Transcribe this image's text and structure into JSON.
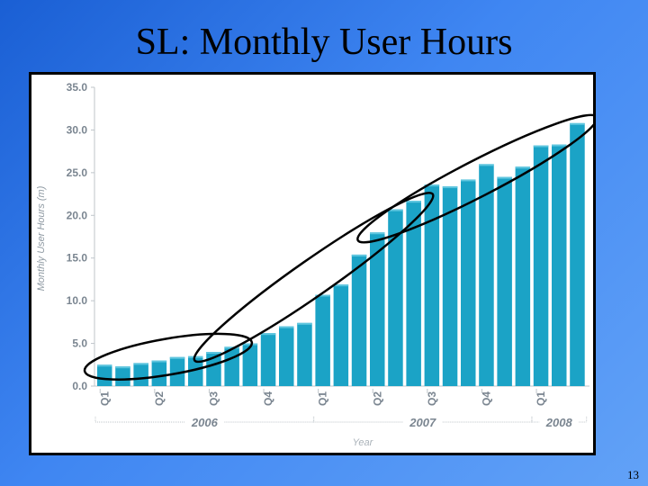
{
  "slide": {
    "title": "SL:  Monthly User Hours",
    "page_number": "13"
  },
  "colors": {
    "bar": "#1ba3c6",
    "bar_top": "#5fc6df",
    "axis": "#bfc5ca",
    "grid": "#e3e6e8",
    "annotation": "#000000"
  },
  "chart_data": {
    "type": "bar",
    "title": "",
    "xlabel": "Year",
    "ylabel": "Monthly User Hours (m)",
    "ylim": [
      0,
      35
    ],
    "yticks": [
      "0.0",
      "5.0",
      "10.0",
      "15.0",
      "20.0",
      "25.0",
      "30.0",
      "35.0"
    ],
    "grid": false,
    "quarter_labels": [
      {
        "label": "Q1",
        "month_index": 0
      },
      {
        "label": "Q2",
        "month_index": 3
      },
      {
        "label": "Q3",
        "month_index": 6
      },
      {
        "label": "Q4",
        "month_index": 9
      },
      {
        "label": "Q1",
        "month_index": 12
      },
      {
        "label": "Q2",
        "month_index": 15
      },
      {
        "label": "Q3",
        "month_index": 18
      },
      {
        "label": "Q4",
        "month_index": 21
      },
      {
        "label": "Q1",
        "month_index": 24
      }
    ],
    "year_labels": [
      {
        "label": "2006",
        "start_month": 0,
        "end_month": 11
      },
      {
        "label": "2007",
        "start_month": 12,
        "end_month": 23
      },
      {
        "label": "2008",
        "start_month": 24,
        "end_month": 26
      }
    ],
    "values": [
      2.5,
      2.3,
      2.7,
      3.0,
      3.4,
      3.5,
      4.0,
      4.6,
      5.0,
      6.2,
      7.0,
      7.4,
      10.7,
      11.9,
      15.4,
      18.0,
      20.7,
      21.7,
      23.6,
      23.4,
      24.2,
      26.0,
      24.5,
      25.7,
      28.2,
      28.3,
      30.8
    ],
    "annotations": [
      {
        "shape": "ellipse",
        "label": "",
        "start_month": 0,
        "end_month": 7
      },
      {
        "shape": "ellipse",
        "label": "",
        "start_month": 6,
        "end_month": 17
      },
      {
        "shape": "ellipse",
        "label": "",
        "start_month": 15,
        "end_month": 26
      }
    ]
  }
}
